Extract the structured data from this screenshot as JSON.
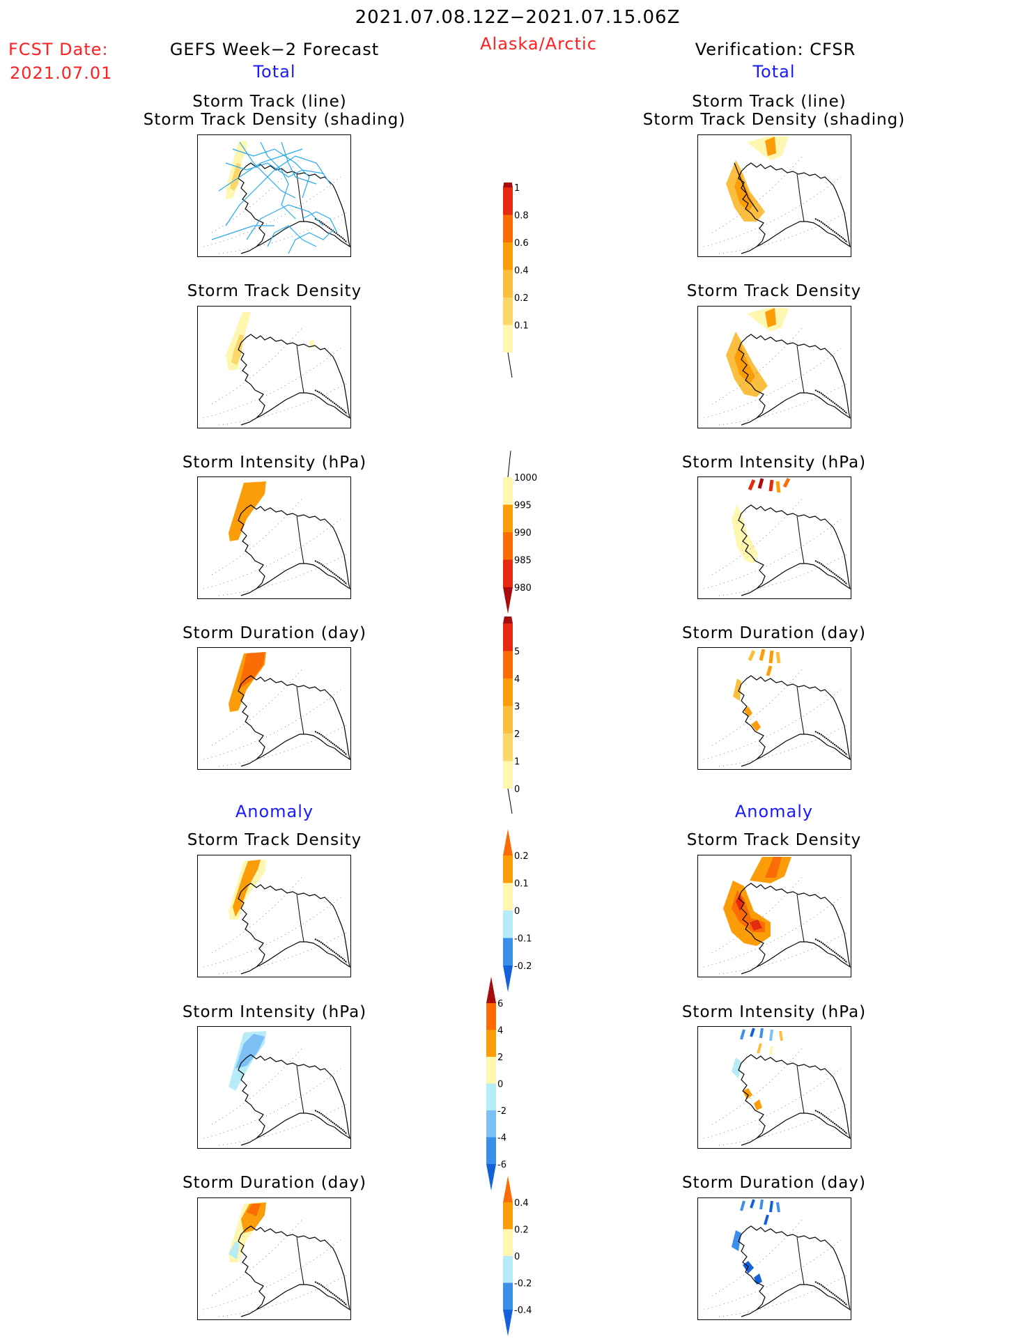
{
  "header": {
    "period": "2021.07.08.12Z−2021.07.15.06Z",
    "region": "Alaska/Arctic",
    "fcst_label": "FCST Date:",
    "fcst_date": "2021.07.01",
    "left_title": "GEFS Week−2 Forecast",
    "right_title": "Verification: CFSR",
    "left_total": "Total",
    "right_total": "Total",
    "left_anomaly": "Anomaly",
    "right_anomaly": "Anomaly"
  },
  "panels": [
    {
      "title": [
        "Storm Track (line)",
        "Storm Track Density (shading)"
      ]
    },
    {
      "title": [
        "Storm Track Density"
      ]
    },
    {
      "title": [
        "Storm Intensity (hPa)"
      ]
    },
    {
      "title": [
        "Storm Duration (day)"
      ]
    },
    {
      "title": [
        "Storm Track Density"
      ]
    },
    {
      "title": [
        "Storm Intensity (hPa)"
      ]
    },
    {
      "title": [
        "Storm Duration (day)"
      ]
    }
  ],
  "colors": {
    "lightyellow": "#fff6b0",
    "yellow": "#fcd76a",
    "lightorange": "#fbbf40",
    "orange": "#fb9d08",
    "darkorange": "#fb6c06",
    "red": "#e42b0f",
    "darkred": "#a70d0d",
    "lightcyan": "#b6ecf8",
    "lightblue": "#7dc0f5",
    "blue": "#3b8fe8",
    "darkblue": "#1561d9",
    "track": "#27a9f2"
  },
  "chart_data": [
    {
      "type": "heatmap",
      "title": "Storm Track Density colorbar",
      "levels": [
        "0.1",
        "0.2",
        "0.4",
        "0.6",
        "0.8",
        "1"
      ],
      "colors": [
        "#fff6b0",
        "#fcd76a",
        "#fbbf40",
        "#fb9d08",
        "#fb6c06",
        "#e42b0f",
        "#a70d0d"
      ]
    },
    {
      "type": "heatmap",
      "title": "Storm Intensity colorbar (hPa)",
      "levels": [
        "1000",
        "995",
        "990",
        "985",
        "980"
      ],
      "colors": [
        "#fff6b0",
        "#fb9d08",
        "#fb6c06",
        "#e42b0f",
        "#a70d0d"
      ]
    },
    {
      "type": "heatmap",
      "title": "Storm Duration colorbar (day)",
      "levels": [
        "0",
        "1",
        "2",
        "3",
        "4",
        "5"
      ],
      "colors": [
        "#fff6b0",
        "#fcd76a",
        "#fbbf40",
        "#fb9d08",
        "#fb6c06",
        "#e42b0f",
        "#a70d0d"
      ]
    },
    {
      "type": "heatmap",
      "title": "Storm Track Density anomaly colorbar",
      "levels": [
        "-0.2",
        "-0.1",
        "0",
        "0.1",
        "0.2"
      ],
      "colors": [
        "#1561d9",
        "#3b8fe8",
        "#b6ecf8",
        "#fff6b0",
        "#fb9d08",
        "#fb6c06"
      ]
    },
    {
      "type": "heatmap",
      "title": "Storm Intensity anomaly colorbar (hPa)",
      "levels": [
        "-6",
        "-4",
        "-2",
        "0",
        "2",
        "4",
        "6"
      ],
      "colors": [
        "#1561d9",
        "#3b8fe8",
        "#7dc0f5",
        "#b6ecf8",
        "#fff6b0",
        "#fb9d08",
        "#fb6c06",
        "#a70d0d"
      ]
    },
    {
      "type": "heatmap",
      "title": "Storm Duration anomaly colorbar (day)",
      "levels": [
        "-0.4",
        "-0.2",
        "0",
        "0.2",
        "0.4"
      ],
      "colors": [
        "#1561d9",
        "#3b8fe8",
        "#b6ecf8",
        "#fff6b0",
        "#fb9d08",
        "#fb6c06"
      ]
    }
  ]
}
